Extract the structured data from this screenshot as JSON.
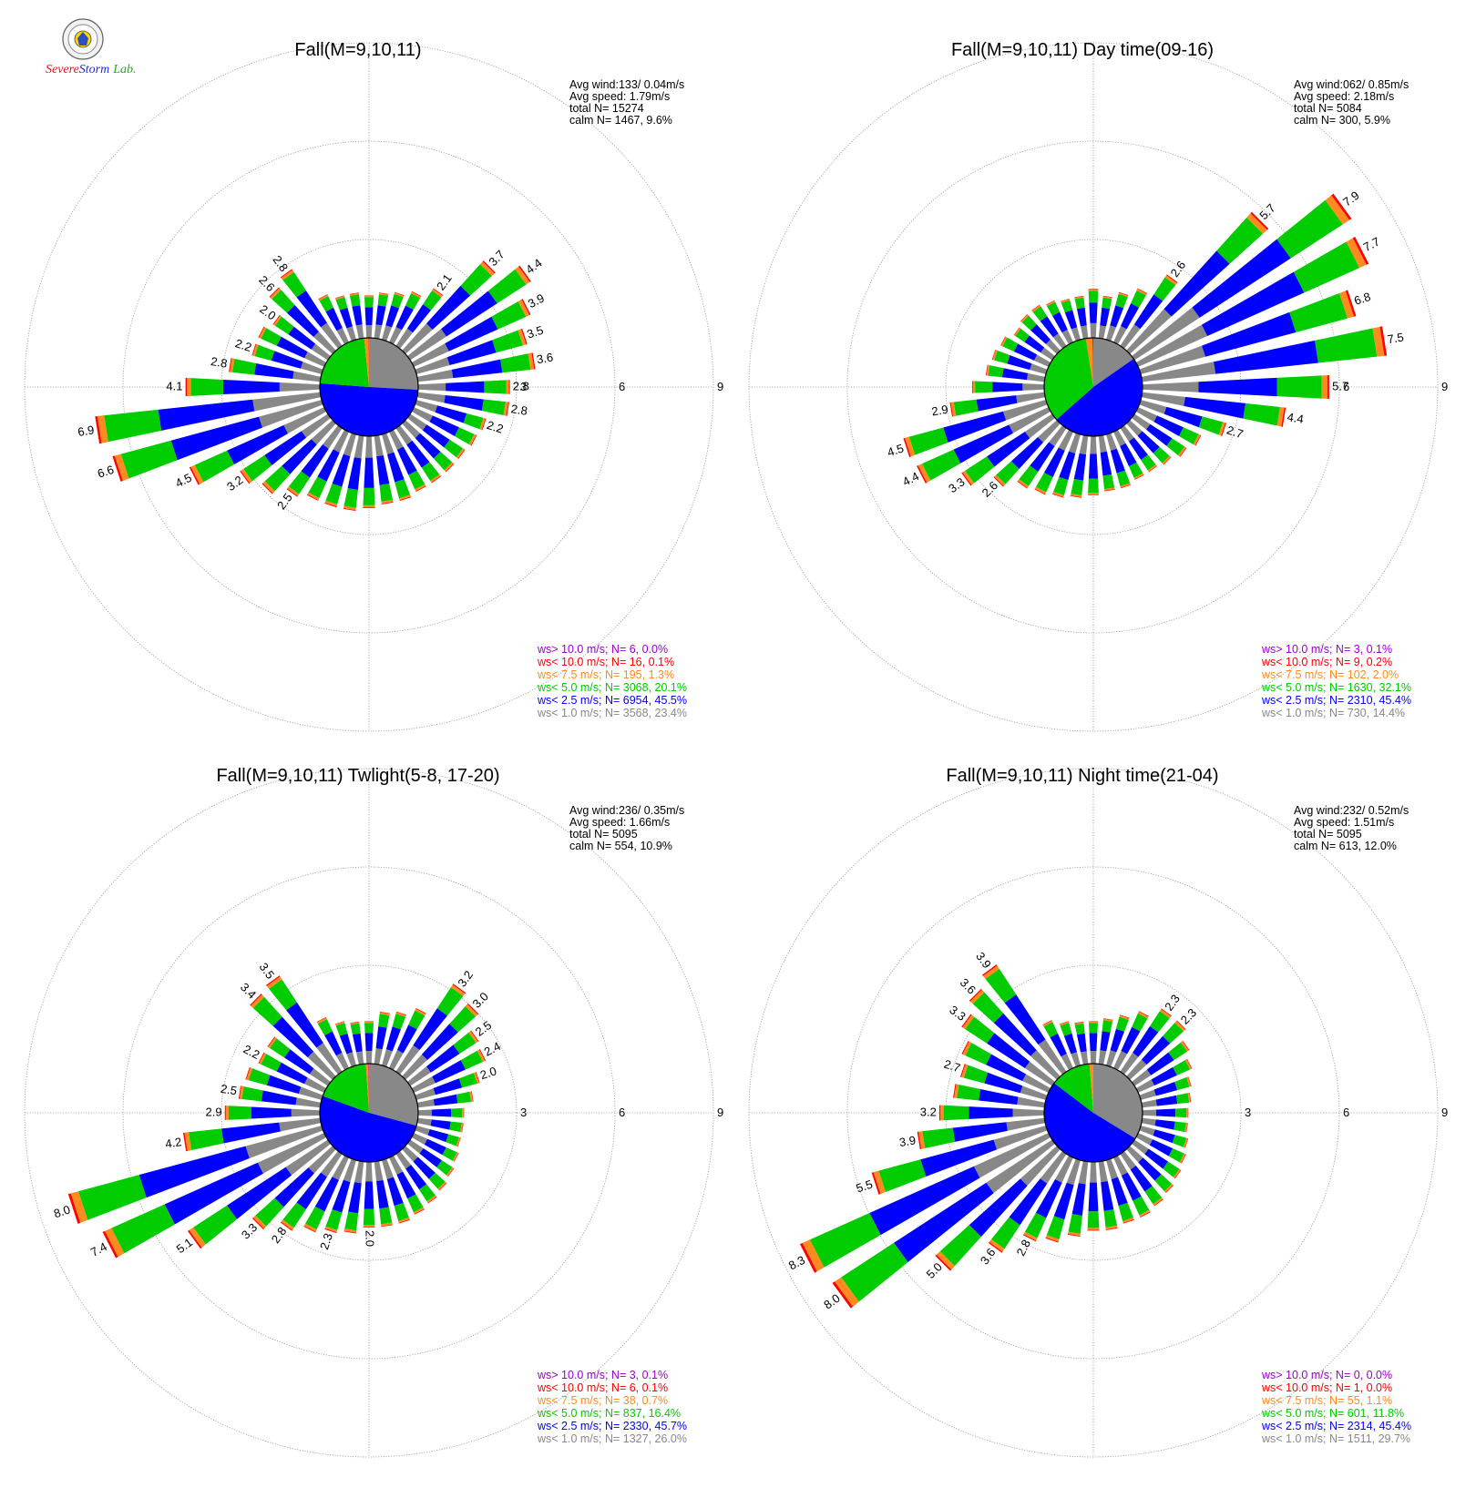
{
  "logo": {
    "name": "Severe Storm Lab.",
    "brand_parts": [
      "S",
      "evere",
      "S",
      "torm",
      "Lab."
    ],
    "colors": {
      "red": "#e8141e",
      "blue": "#1a2fd6",
      "green": "#2aa52a"
    }
  },
  "colors": {
    "ws_gt_10": "#9b00d0",
    "ws_lt_10": "#ff0000",
    "ws_lt_7_5": "#ff8a1f",
    "ws_lt_5": "#00cc00",
    "ws_lt_2_5": "#0000ff",
    "ws_lt_1": "#888888",
    "calm_circle_stroke": "#000000",
    "rings": "#999999"
  },
  "chart_data": [
    {
      "type": "wind-rose",
      "title": "Fall(M=9,10,11)",
      "ring_labels": [
        "3",
        "6",
        "9"
      ],
      "rmax": 9,
      "stats": [
        "Avg wind:133/ 0.04m/s",
        "Avg speed: 1.79m/s",
        "total N=      15274",
        "calm N=   1467,   9.6%"
      ],
      "legend": [
        {
          "key": "ws_gt_10",
          "label": "ws> 10.0 m/s; N=     6,  0.0%"
        },
        {
          "key": "ws_lt_10",
          "label": "ws< 10.0 m/s; N=    16,  0.1%"
        },
        {
          "key": "ws_lt_7_5",
          "label": "ws<  7.5 m/s; N=   195,  1.3%"
        },
        {
          "key": "ws_lt_5",
          "label": "ws<  5.0 m/s; N=  3068, 20.1%"
        },
        {
          "key": "ws_lt_2_5",
          "label": "ws<  2.5 m/s; N=  6954, 45.5%"
        },
        {
          "key": "ws_lt_1",
          "label": "ws<  1.0 m/s; N=  3568, 23.4%"
        }
      ],
      "pie": [
        23.4,
        45.5,
        20.1,
        1.3,
        0.1,
        0.0
      ],
      "bars": [
        1.3,
        1.4,
        1.5,
        1.7,
        2.1,
        3.7,
        4.4,
        3.9,
        3.5,
        3.6,
        2.8,
        2.8,
        2.2,
        2.1,
        2.0,
        2.0,
        2.0,
        2.0,
        2.1,
        2.1,
        2.2,
        2.3,
        2.3,
        2.3,
        2.5,
        2.9,
        3.2,
        4.5,
        6.6,
        6.9,
        4.1,
        2.8,
        2.2,
        2.2,
        2.0,
        2.6,
        2.8,
        1.6,
        1.4,
        1.4
      ],
      "bar_labels": [
        {
          "i": 4,
          "text": "2.1"
        },
        {
          "i": 5,
          "text": "3.7"
        },
        {
          "i": 6,
          "text": "4.4"
        },
        {
          "i": 7,
          "text": "3.9"
        },
        {
          "i": 8,
          "text": "3.5"
        },
        {
          "i": 9,
          "text": "3.6"
        },
        {
          "i": 10,
          "text": "2.8"
        },
        {
          "i": 11,
          "text": "2.8"
        },
        {
          "i": 12,
          "text": "2.2"
        },
        {
          "i": 24,
          "text": "2.5"
        },
        {
          "i": 26,
          "text": "3.2"
        },
        {
          "i": 27,
          "text": "4.5"
        },
        {
          "i": 28,
          "text": "6.6"
        },
        {
          "i": 29,
          "text": "6.9"
        },
        {
          "i": 30,
          "text": "4.1"
        },
        {
          "i": 31,
          "text": "2.8"
        },
        {
          "i": 32,
          "text": "2.2"
        },
        {
          "i": 34,
          "text": "2.0"
        },
        {
          "i": 35,
          "text": "2.6"
        },
        {
          "i": 36,
          "text": "2.8"
        }
      ]
    },
    {
      "type": "wind-rose",
      "title": "Fall(M=9,10,11) Day time(09-16)",
      "ring_labels": [
        "3",
        "6",
        "9"
      ],
      "rmax": 9,
      "stats": [
        "Avg wind:062/ 0.85m/s",
        "Avg speed: 2.18m/s",
        "total N=       5084",
        "calm N=    300,   5.9%"
      ],
      "legend": [
        {
          "key": "ws_gt_10",
          "label": "ws> 10.0 m/s; N=     3,  0.1%"
        },
        {
          "key": "ws_lt_10",
          "label": "ws< 10.0 m/s; N=     9,  0.2%"
        },
        {
          "key": "ws_lt_7_5",
          "label": "ws<  7.5 m/s; N=   102,  2.0%"
        },
        {
          "key": "ws_lt_5",
          "label": "ws<  5.0 m/s; N=  1630, 32.1%"
        },
        {
          "key": "ws_lt_2_5",
          "label": "ws<  2.5 m/s; N=  2310, 45.4%"
        },
        {
          "key": "ws_lt_1",
          "label": "ws<  1.0 m/s; N=   730, 14.4%"
        }
      ],
      "pie": [
        14.4,
        45.4,
        32.1,
        2.0,
        0.2,
        0.1
      ],
      "bars": [
        1.5,
        1.3,
        1.5,
        1.8,
        2.6,
        5.7,
        7.9,
        7.7,
        6.8,
        7.5,
        5.7,
        4.4,
        2.7,
        2.1,
        1.9,
        1.7,
        1.6,
        1.6,
        1.7,
        1.7,
        1.8,
        1.9,
        2.0,
        2.1,
        2.2,
        2.6,
        3.3,
        4.4,
        4.5,
        2.9,
        2.2,
        1.8,
        1.7,
        1.6,
        1.4,
        1.5,
        1.5,
        1.4,
        1.3,
        1.3
      ],
      "bar_labels": [
        {
          "i": 4,
          "text": "2.6"
        },
        {
          "i": 5,
          "text": "5.7"
        },
        {
          "i": 6,
          "text": "7.9"
        },
        {
          "i": 7,
          "text": "7.7"
        },
        {
          "i": 8,
          "text": "6.8"
        },
        {
          "i": 9,
          "text": "7.5"
        },
        {
          "i": 10,
          "text": "5.7"
        },
        {
          "i": 11,
          "text": "4.4"
        },
        {
          "i": 12,
          "text": "2.7"
        },
        {
          "i": 25,
          "text": "2.6"
        },
        {
          "i": 26,
          "text": "3.3"
        },
        {
          "i": 27,
          "text": "4.4"
        },
        {
          "i": 28,
          "text": "4.5"
        },
        {
          "i": 29,
          "text": "2.9"
        }
      ]
    },
    {
      "type": "wind-rose",
      "title": "Fall(M=9,10,11) Twlight(5-8, 17-20)",
      "ring_labels": [
        "3",
        "6",
        "9"
      ],
      "rmax": 9,
      "stats": [
        "Avg wind:236/ 0.35m/s",
        "Avg speed: 1.66m/s",
        "total N=       5095",
        "calm N=    554,  10.9%"
      ],
      "legend": [
        {
          "key": "ws_gt_10",
          "label": "ws> 10.0 m/s; N=     3,  0.1%"
        },
        {
          "key": "ws_lt_10",
          "label": "ws< 10.0 m/s; N=     6,  0.1%"
        },
        {
          "key": "ws_lt_7_5",
          "label": "ws<  7.5 m/s; N=    38,  0.7%"
        },
        {
          "key": "ws_lt_5",
          "label": "ws<  5.0 m/s; N=   837, 16.4%"
        },
        {
          "key": "ws_lt_2_5",
          "label": "ws<  2.5 m/s; N=  2330, 45.7%"
        },
        {
          "key": "ws_lt_1",
          "label": "ws<  1.0 m/s; N=  1327, 26.0%"
        }
      ],
      "pie": [
        26.0,
        45.7,
        16.4,
        0.7,
        0.1,
        0.1
      ],
      "bars": [
        1.3,
        1.6,
        1.7,
        2.0,
        3.2,
        3.0,
        2.5,
        2.4,
        2.0,
        1.7,
        1.4,
        1.4,
        1.4,
        1.5,
        1.6,
        1.7,
        1.8,
        1.9,
        2.0,
        2.0,
        2.0,
        2.2,
        2.3,
        2.5,
        2.8,
        3.3,
        5.1,
        7.4,
        8.0,
        4.2,
        2.9,
        2.5,
        2.4,
        2.2,
        2.2,
        3.4,
        3.5,
        1.7,
        1.4,
        1.3
      ],
      "bar_labels": [
        {
          "i": 4,
          "text": "3.2"
        },
        {
          "i": 5,
          "text": "3.0"
        },
        {
          "i": 6,
          "text": "2.5"
        },
        {
          "i": 7,
          "text": "2.4"
        },
        {
          "i": 8,
          "text": "2.0"
        },
        {
          "i": 20,
          "text": "2.0"
        },
        {
          "i": 22,
          "text": "2.3"
        },
        {
          "i": 24,
          "text": "2.8"
        },
        {
          "i": 25,
          "text": "3.3"
        },
        {
          "i": 26,
          "text": "5.1"
        },
        {
          "i": 27,
          "text": "7.4"
        },
        {
          "i": 28,
          "text": "8.0"
        },
        {
          "i": 29,
          "text": "4.2"
        },
        {
          "i": 30,
          "text": "2.9"
        },
        {
          "i": 31,
          "text": "2.5"
        },
        {
          "i": 33,
          "text": "2.2"
        },
        {
          "i": 35,
          "text": "3.4"
        },
        {
          "i": 36,
          "text": "3.5"
        }
      ]
    },
    {
      "type": "wind-rose",
      "title": "Fall(M=9,10,11) Night time(21-04)",
      "ring_labels": [
        "3",
        "6",
        "9"
      ],
      "rmax": 9,
      "stats": [
        "Avg wind:232/ 0.52m/s",
        "Avg speed: 1.51m/s",
        "total N=       5095",
        "calm N=    613,  12.0%"
      ],
      "legend": [
        {
          "key": "ws_gt_10",
          "label": "ws> 10.0 m/s; N=     0,  0.0%"
        },
        {
          "key": "ws_lt_10",
          "label": "ws< 10.0 m/s; N=     1,  0.0%"
        },
        {
          "key": "ws_lt_7_5",
          "label": "ws<  7.5 m/s; N=    55,  1.1%"
        },
        {
          "key": "ws_lt_5",
          "label": "ws<  5.0 m/s; N=   601, 11.8%"
        },
        {
          "key": "ws_lt_2_5",
          "label": "ws<  2.5 m/s; N=  2314, 45.4%"
        },
        {
          "key": "ws_lt_1",
          "label": "ws<  1.0 m/s; N=  1511, 29.7%"
        }
      ],
      "pie": [
        29.7,
        45.4,
        11.8,
        1.1,
        0.0,
        0.0
      ],
      "bars": [
        1.3,
        1.4,
        1.6,
        1.9,
        2.3,
        2.3,
        2.0,
        1.8,
        1.6,
        1.5,
        1.4,
        1.4,
        1.5,
        1.6,
        1.7,
        1.8,
        1.9,
        2.0,
        2.0,
        2.1,
        2.1,
        2.3,
        2.6,
        2.8,
        3.6,
        5.0,
        8.0,
        8.3,
        5.5,
        3.9,
        3.2,
        2.8,
        2.7,
        2.9,
        3.3,
        3.6,
        3.9,
        1.6,
        1.4,
        1.3
      ],
      "bar_labels": [
        {
          "i": 4,
          "text": "2.3"
        },
        {
          "i": 5,
          "text": "2.3"
        },
        {
          "i": 23,
          "text": "2.8"
        },
        {
          "i": 24,
          "text": "3.6"
        },
        {
          "i": 25,
          "text": "5.0"
        },
        {
          "i": 26,
          "text": "8.0"
        },
        {
          "i": 27,
          "text": "8.3"
        },
        {
          "i": 28,
          "text": "5.5"
        },
        {
          "i": 29,
          "text": "3.9"
        },
        {
          "i": 30,
          "text": "3.2"
        },
        {
          "i": 32,
          "text": "2.7"
        },
        {
          "i": 34,
          "text": "3.3"
        },
        {
          "i": 35,
          "text": "3.6"
        },
        {
          "i": 36,
          "text": "3.9"
        }
      ]
    }
  ]
}
